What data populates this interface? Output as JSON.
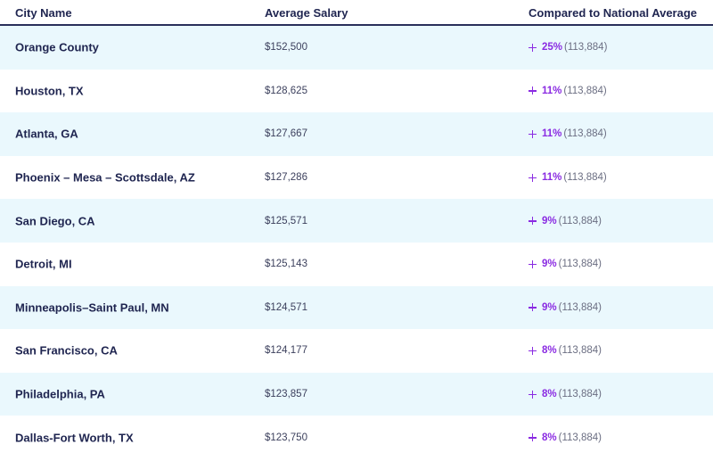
{
  "header": {
    "city": "City Name",
    "salary": "Average Salary",
    "compare": "Compared to National Average"
  },
  "accent_color": "#8a2be2",
  "rows": [
    {
      "city": "Orange County",
      "salary": "$152,500",
      "pct": "25%",
      "national": "(113,884)"
    },
    {
      "city": "Houston, TX",
      "salary": "$128,625",
      "pct": "11%",
      "national": "(113,884)"
    },
    {
      "city": "Atlanta, GA",
      "salary": "$127,667",
      "pct": "11%",
      "national": "(113,884)"
    },
    {
      "city": "Phoenix – Mesa – Scottsdale, AZ",
      "salary": "$127,286",
      "pct": "11%",
      "national": "(113,884)"
    },
    {
      "city": "San Diego, CA",
      "salary": "$125,571",
      "pct": "9%",
      "national": "(113,884)"
    },
    {
      "city": "Detroit, MI",
      "salary": "$125,143",
      "pct": "9%",
      "national": "(113,884)"
    },
    {
      "city": "Minneapolis–Saint Paul, MN",
      "salary": "$124,571",
      "pct": "9%",
      "national": "(113,884)"
    },
    {
      "city": "San Francisco, CA",
      "salary": "$124,177",
      "pct": "8%",
      "national": "(113,884)"
    },
    {
      "city": "Philadelphia, PA",
      "salary": "$123,857",
      "pct": "8%",
      "national": "(113,884)"
    },
    {
      "city": "Dallas-Fort Worth, TX",
      "salary": "$123,750",
      "pct": "8%",
      "national": "(113,884)"
    }
  ]
}
